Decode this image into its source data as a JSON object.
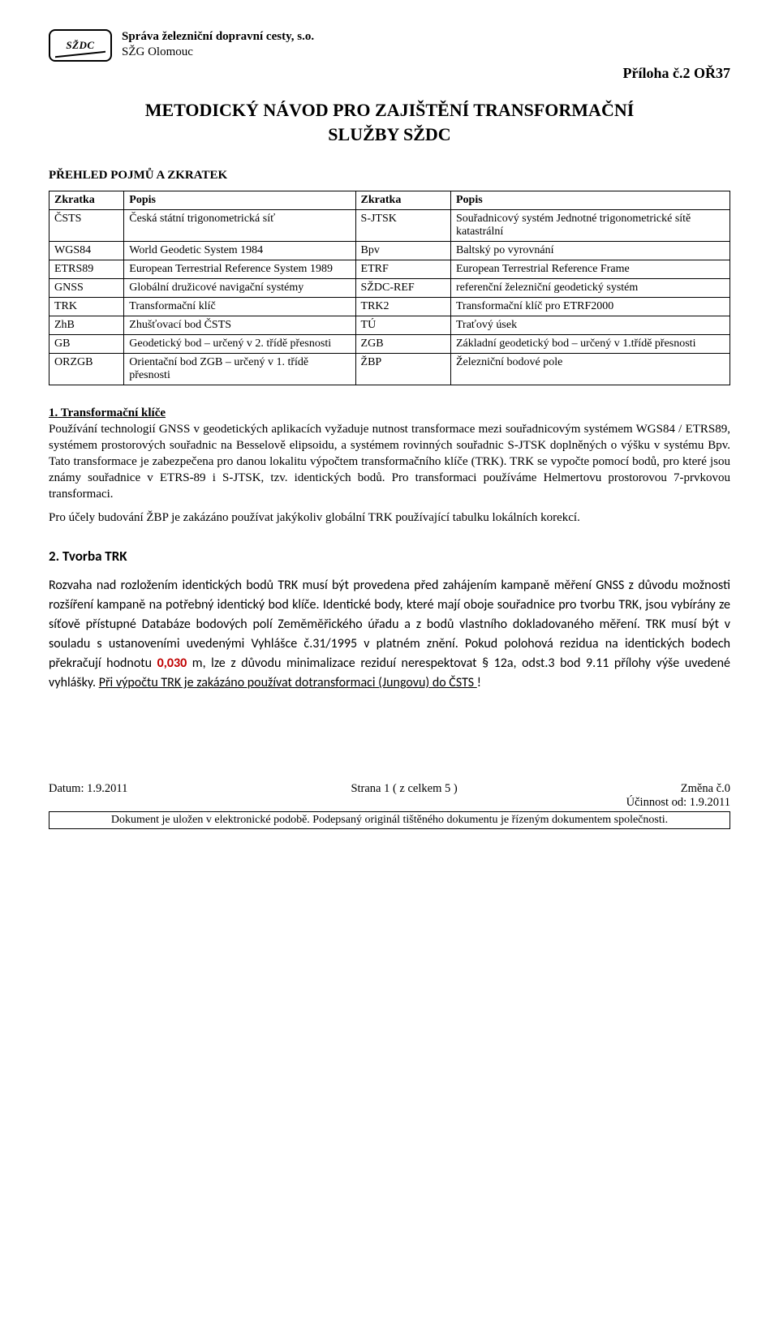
{
  "header": {
    "logo_text": "SŽDC",
    "org_line1": "Správa železniční dopravní cesty, s.o.",
    "org_line2": "SŽG Olomouc",
    "right_title": "Příloha č.2 OŘ37"
  },
  "title": {
    "line1": "METODICKÝ NÁVOD PRO ZAJIŠTĚNÍ TRANSFORMAČNÍ",
    "line2": "SLUŽBY SŽDC"
  },
  "subhead": "PŘEHLED POJMŮ A ZKRATEK",
  "table": {
    "headers": [
      "Zkratka",
      "Popis",
      "Zkratka",
      "Popis"
    ],
    "rows": [
      [
        "ČSTS",
        "Česká státní trigonometrická síť",
        "S-JTSK",
        "Souřadnicový systém Jednotné trigonometrické sítě katastrální"
      ],
      [
        "WGS84",
        "World Geodetic System 1984",
        "Bpv",
        "Baltský po vyrovnání"
      ],
      [
        "ETRS89",
        "European Terrestrial Reference System 1989",
        "ETRF",
        "European Terrestrial Reference Frame"
      ],
      [
        "GNSS",
        "Globální družicové navigační systémy",
        "SŽDC-REF",
        "referenční železniční geodetický systém"
      ],
      [
        "TRK",
        "Transformační klíč",
        "TRK2",
        "Transformační klíč pro ETRF2000"
      ],
      [
        "ZhB",
        "Zhušťovací bod ČSTS",
        "TÚ",
        "Traťový úsek"
      ],
      [
        "GB",
        "Geodetický bod – určený v 2. třídě přesnosti",
        "ZGB",
        "Základní geodetický bod – určený v 1.třídě přesnosti"
      ],
      [
        "ORZGB",
        "Orientační bod ZGB – určený v 1. třídě přesnosti",
        "ŽBP",
        "Železniční bodové pole"
      ]
    ]
  },
  "section1": {
    "title": "1. Transformační klíče",
    "para1": "Používání technologií GNSS v geodetických aplikacích vyžaduje nutnost transformace mezi souřadnicovým systémem WGS84 / ETRS89, systémem prostorových souřadnic na Besselově elipsoidu, a systémem rovinných souřadnic S-JTSK doplněných o výšku v systému Bpv. Tato transformace je zabezpečena pro danou lokalitu výpočtem transformačního klíče (TRK). TRK se vypočte pomocí bodů, pro které jsou známy souřadnice v ETRS-89 i S-JTSK, tzv. identických bodů. Pro transformaci používáme Helmertovu prostorovou 7-prvkovou transformaci.",
    "para2": "Pro účely budování ŽBP je zakázáno používat jakýkoliv globální TRK používající tabulku lokálních korekcí."
  },
  "section2": {
    "title": "2. Tvorba TRK",
    "p_a": "Rozvaha nad rozložením identických bodů TRK musí být provedena před zahájením kampaně měření GNSS z důvodu možnosti rozšíření kampaně  na potřebný identický bod klíče. Identické body, které mají oboje souřadnice pro tvorbu TRK, jsou vybírány ze síťově přístupné  Databáze bodových polí Zeměměřického úřadu a z bodů vlastního dokladovaného měření.  TRK musí být v souladu s ustanoveními uvedenými Vyhlášce č.31/1995 v platném znění. Pokud polohová rezidua na identických bodech překračují hodnotu ",
    "red_value": "0,030",
    "p_b": " m, lze z důvodu minimalizace reziduí nerespektovat § 12a, odst.3 bod 9.11 přílohy výše uvedené vyhlášky.  ",
    "u_tail": "Při výpočtu TRK je zakázáno používat dotransformaci (Jungovu) do ČSTS ",
    "excl": "!"
  },
  "footer": {
    "date": "Datum: 1.9.2011",
    "page": "Strana 1 ( z celkem 5 )",
    "change": "Změna č.0",
    "eff": "Účinnost od:  1.9.2011",
    "box": "Dokument  je uložen v elektronické podobě. Podepsaný originál tištěného dokumentu je řízeným dokumentem společnosti."
  }
}
